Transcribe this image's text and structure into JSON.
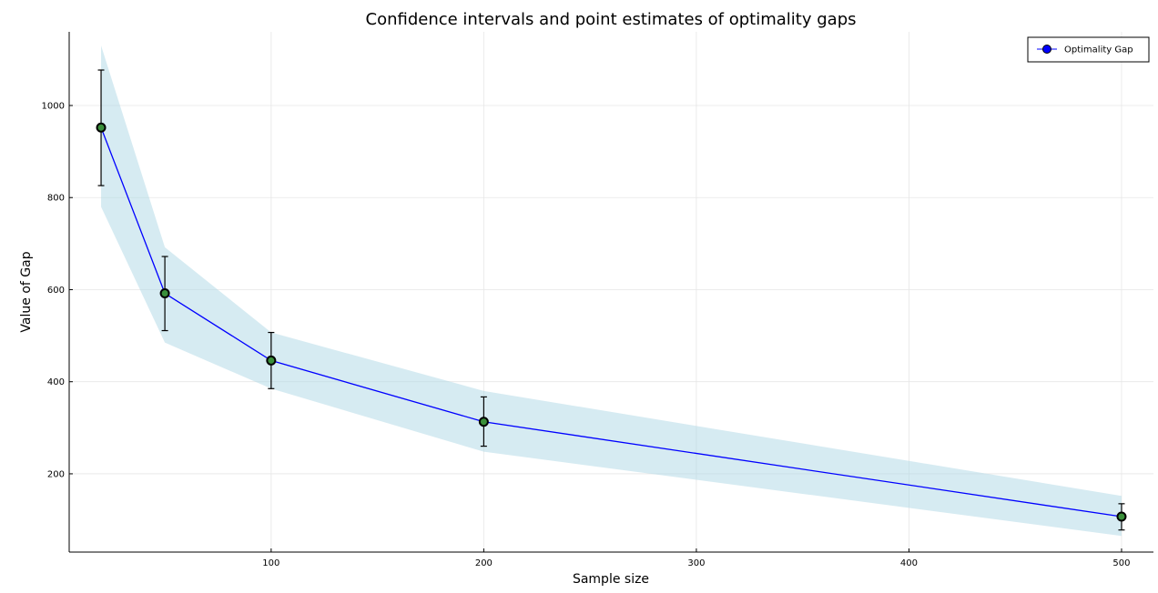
{
  "chart_data": {
    "type": "line",
    "title": "Confidence intervals and point estimates of optimality gaps",
    "xlabel": "Sample size",
    "ylabel": "Value of Gap",
    "x": [
      20,
      50,
      100,
      200,
      500
    ],
    "series": [
      {
        "name": "Optimality Gap",
        "values": [
          952,
          592,
          446,
          313,
          107
        ],
        "error_lower": [
          826,
          511,
          385,
          260,
          78
        ],
        "error_upper": [
          1077,
          672,
          507,
          367,
          135
        ],
        "band_lower": [
          780,
          485,
          385,
          248,
          65
        ],
        "band_upper": [
          1130,
          692,
          507,
          380,
          152
        ]
      }
    ],
    "xticks": [
      100,
      200,
      300,
      400,
      500
    ],
    "yticks": [
      200,
      400,
      600,
      800,
      1000
    ],
    "xlim": [
      5,
      515
    ],
    "ylim": [
      30,
      1160
    ],
    "grid": true,
    "legend_position": "top-right",
    "colors": {
      "line": "#0000ff",
      "band": "#add8e6",
      "marker_fill": "#3a8f3a",
      "marker_edge": "#000000",
      "error_bar": "#000000",
      "legend_marker": "#0000ff"
    }
  }
}
